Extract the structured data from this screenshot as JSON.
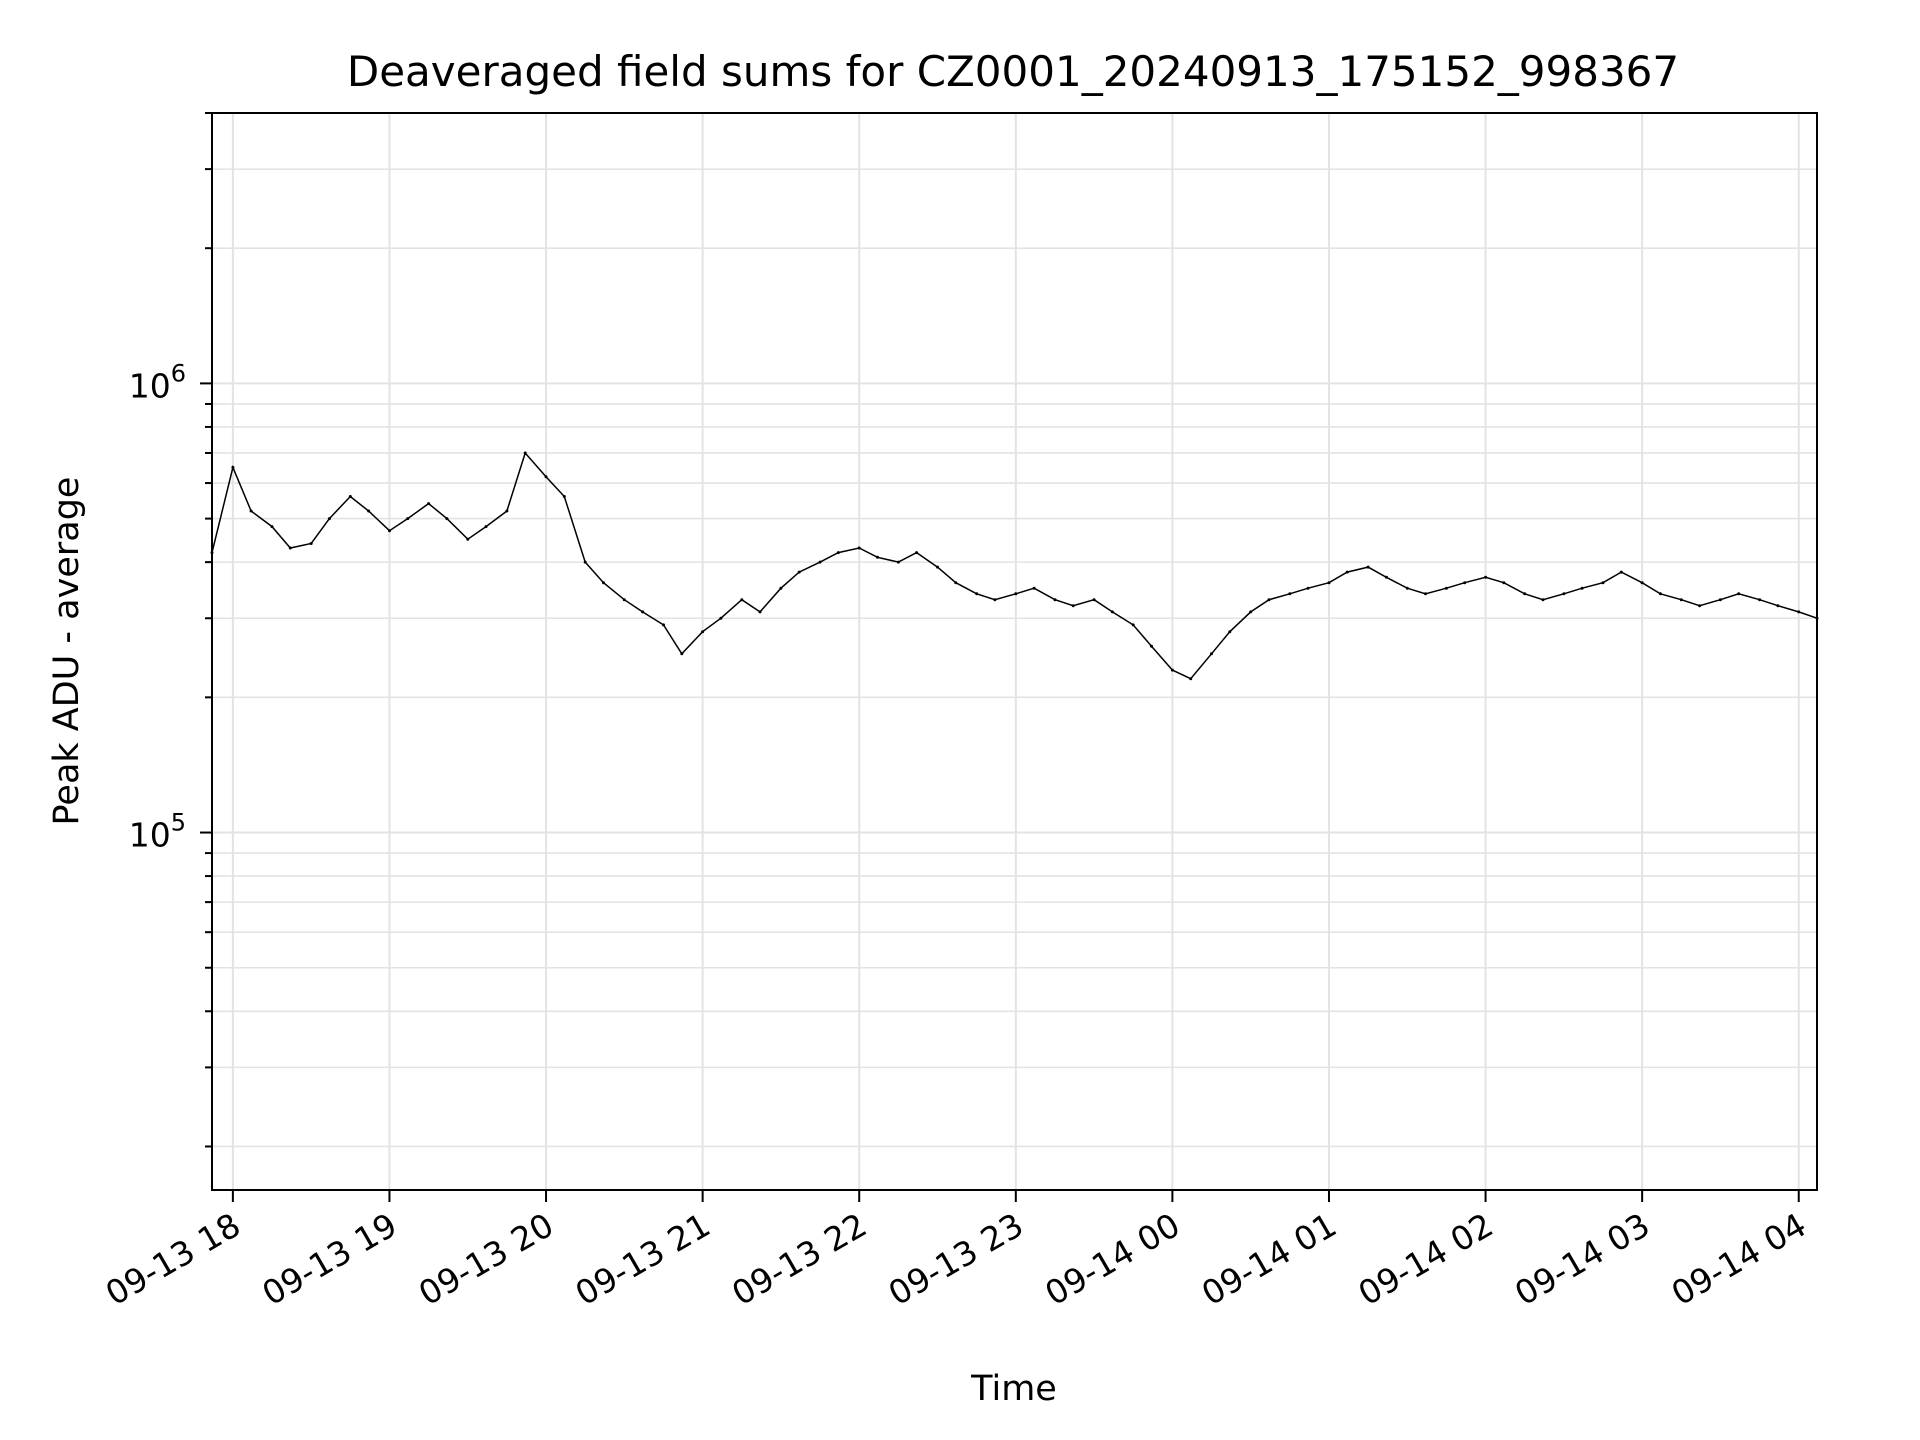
{
  "chart_data": {
    "type": "line",
    "title": "Deaveraged field sums for CZ0001_20240913_175152_998367",
    "xlabel": "Time",
    "ylabel": "Peak ADU - average",
    "y_scale": "log",
    "ylim": [
      16000,
      4000000
    ],
    "xlim": [
      "2024-09-13 17:52",
      "2024-09-14 04:07"
    ],
    "grid": true,
    "line_color": "#000000",
    "x_ticks": [
      "09-13 18",
      "09-13 19",
      "09-13 20",
      "09-13 21",
      "09-13 22",
      "09-13 23",
      "09-14 00",
      "09-14 01",
      "09-14 02",
      "09-14 03",
      "09-14 04"
    ],
    "y_ticks": [
      {
        "value": 100000,
        "base": "10",
        "exp": "5"
      },
      {
        "value": 1000000,
        "base": "10",
        "exp": "6"
      }
    ],
    "series": [
      {
        "x": [
          "2024-09-13 17:52",
          "2024-09-13 18:00",
          "2024-09-13 18:07",
          "2024-09-13 18:15",
          "2024-09-13 18:22",
          "2024-09-13 18:30",
          "2024-09-13 18:37",
          "2024-09-13 18:45",
          "2024-09-13 18:52",
          "2024-09-13 19:00",
          "2024-09-13 19:07",
          "2024-09-13 19:15",
          "2024-09-13 19:22",
          "2024-09-13 19:30",
          "2024-09-13 19:37",
          "2024-09-13 19:45",
          "2024-09-13 19:52",
          "2024-09-13 20:00",
          "2024-09-13 20:07",
          "2024-09-13 20:15",
          "2024-09-13 20:22",
          "2024-09-13 20:30",
          "2024-09-13 20:37",
          "2024-09-13 20:45",
          "2024-09-13 20:52",
          "2024-09-13 21:00",
          "2024-09-13 21:07",
          "2024-09-13 21:15",
          "2024-09-13 21:22",
          "2024-09-13 21:30",
          "2024-09-13 21:37",
          "2024-09-13 21:45",
          "2024-09-13 21:52",
          "2024-09-13 22:00",
          "2024-09-13 22:07",
          "2024-09-13 22:15",
          "2024-09-13 22:22",
          "2024-09-13 22:30",
          "2024-09-13 22:37",
          "2024-09-13 22:45",
          "2024-09-13 22:52",
          "2024-09-13 23:00",
          "2024-09-13 23:07",
          "2024-09-13 23:15",
          "2024-09-13 23:22",
          "2024-09-13 23:30",
          "2024-09-13 23:37",
          "2024-09-13 23:45",
          "2024-09-13 23:52",
          "2024-09-14 00:00",
          "2024-09-14 00:07",
          "2024-09-14 00:15",
          "2024-09-14 00:22",
          "2024-09-14 00:30",
          "2024-09-14 00:37",
          "2024-09-14 00:45",
          "2024-09-14 00:52",
          "2024-09-14 01:00",
          "2024-09-14 01:07",
          "2024-09-14 01:15",
          "2024-09-14 01:22",
          "2024-09-14 01:30",
          "2024-09-14 01:37",
          "2024-09-14 01:45",
          "2024-09-14 01:52",
          "2024-09-14 02:00",
          "2024-09-14 02:07",
          "2024-09-14 02:15",
          "2024-09-14 02:22",
          "2024-09-14 02:30",
          "2024-09-14 02:37",
          "2024-09-14 02:45",
          "2024-09-14 02:52",
          "2024-09-14 03:00",
          "2024-09-14 03:07",
          "2024-09-14 03:15",
          "2024-09-14 03:22",
          "2024-09-14 03:30",
          "2024-09-14 03:37",
          "2024-09-14 03:45",
          "2024-09-14 03:52",
          "2024-09-14 04:00",
          "2024-09-14 04:07"
        ],
        "y": [
          420000,
          650000,
          520000,
          480000,
          430000,
          440000,
          500000,
          560000,
          520000,
          470000,
          500000,
          540000,
          500000,
          450000,
          480000,
          520000,
          700000,
          620000,
          560000,
          400000,
          360000,
          330000,
          310000,
          290000,
          250000,
          280000,
          300000,
          330000,
          310000,
          350000,
          380000,
          400000,
          420000,
          430000,
          410000,
          400000,
          420000,
          390000,
          360000,
          340000,
          330000,
          340000,
          350000,
          330000,
          320000,
          330000,
          310000,
          290000,
          260000,
          230000,
          220000,
          250000,
          280000,
          310000,
          330000,
          340000,
          350000,
          360000,
          380000,
          390000,
          370000,
          350000,
          340000,
          350000,
          360000,
          370000,
          360000,
          340000,
          330000,
          340000,
          350000,
          360000,
          380000,
          360000,
          340000,
          330000,
          320000,
          330000,
          340000,
          330000,
          320000,
          310000,
          300000
        ]
      }
    ]
  }
}
